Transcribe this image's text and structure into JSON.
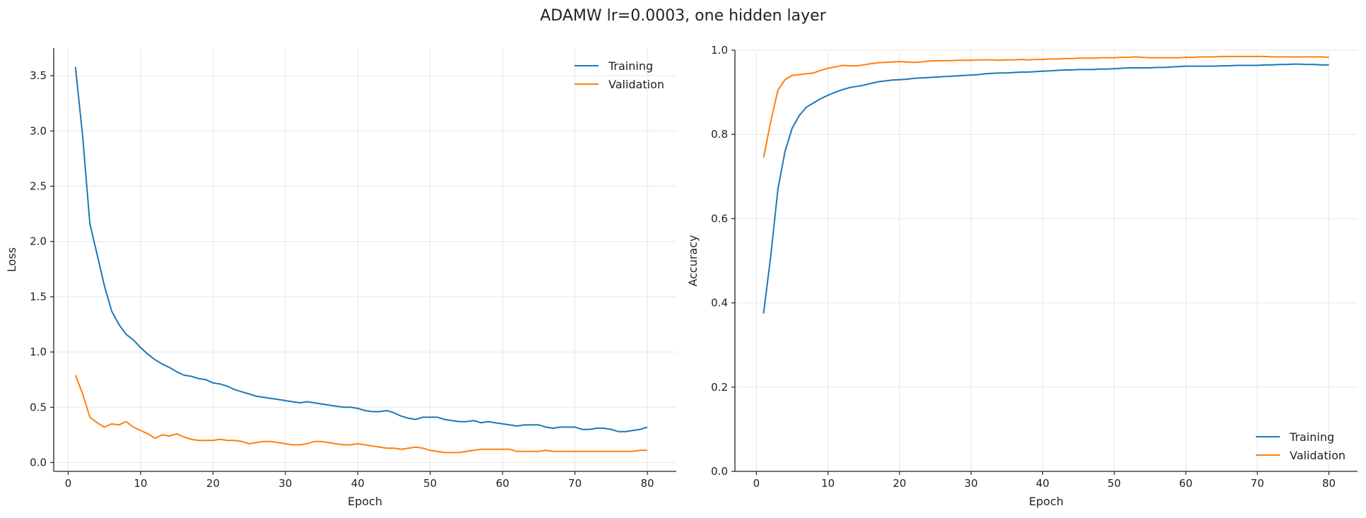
{
  "figure": {
    "title": "ADAMW lr=0.0003, one hidden layer"
  },
  "chart_data": [
    {
      "type": "line",
      "title": "",
      "xlabel": "Epoch",
      "ylabel": "Loss",
      "xlim": [
        -2,
        84
      ],
      "ylim": [
        -0.08,
        3.75
      ],
      "xticks": [
        0,
        10,
        20,
        30,
        40,
        50,
        60,
        70,
        80
      ],
      "yticks": [
        0.0,
        0.5,
        1.0,
        1.5,
        2.0,
        2.5,
        3.0,
        3.5
      ],
      "ytick_labels": [
        "0.0",
        "0.5",
        "1.0",
        "1.5",
        "2.0",
        "2.5",
        "3.0",
        "3.5"
      ],
      "grid": true,
      "legend": "top-right",
      "x": [
        1,
        2,
        3,
        4,
        5,
        6,
        7,
        8,
        9,
        10,
        11,
        12,
        13,
        14,
        15,
        16,
        17,
        18,
        19,
        20,
        21,
        22,
        23,
        24,
        25,
        26,
        27,
        28,
        29,
        30,
        31,
        32,
        33,
        34,
        35,
        36,
        37,
        38,
        39,
        40,
        41,
        42,
        43,
        44,
        45,
        46,
        47,
        48,
        49,
        50,
        51,
        52,
        53,
        54,
        55,
        56,
        57,
        58,
        59,
        60,
        61,
        62,
        63,
        64,
        65,
        66,
        67,
        68,
        69,
        70,
        71,
        72,
        73,
        74,
        75,
        76,
        77,
        78,
        79,
        80
      ],
      "series": [
        {
          "name": "Training",
          "color": "#1f77b4",
          "values": [
            3.58,
            2.95,
            2.16,
            1.88,
            1.6,
            1.37,
            1.25,
            1.16,
            1.11,
            1.04,
            0.98,
            0.93,
            0.89,
            0.86,
            0.82,
            0.79,
            0.78,
            0.76,
            0.75,
            0.72,
            0.71,
            0.69,
            0.66,
            0.64,
            0.62,
            0.6,
            0.59,
            0.58,
            0.57,
            0.56,
            0.55,
            0.54,
            0.55,
            0.54,
            0.53,
            0.52,
            0.51,
            0.5,
            0.5,
            0.49,
            0.47,
            0.46,
            0.46,
            0.47,
            0.45,
            0.42,
            0.4,
            0.39,
            0.41,
            0.41,
            0.41,
            0.39,
            0.38,
            0.37,
            0.37,
            0.38,
            0.36,
            0.37,
            0.36,
            0.35,
            0.34,
            0.33,
            0.34,
            0.34,
            0.34,
            0.32,
            0.31,
            0.32,
            0.32,
            0.32,
            0.3,
            0.3,
            0.31,
            0.31,
            0.3,
            0.28,
            0.28,
            0.29,
            0.3,
            0.32
          ]
        },
        {
          "name": "Validation",
          "color": "#ff7f0e",
          "values": [
            0.79,
            0.62,
            0.41,
            0.36,
            0.32,
            0.35,
            0.34,
            0.37,
            0.32,
            0.29,
            0.26,
            0.22,
            0.25,
            0.24,
            0.26,
            0.23,
            0.21,
            0.2,
            0.2,
            0.2,
            0.21,
            0.2,
            0.2,
            0.19,
            0.17,
            0.18,
            0.19,
            0.19,
            0.18,
            0.17,
            0.16,
            0.16,
            0.17,
            0.19,
            0.19,
            0.18,
            0.17,
            0.16,
            0.16,
            0.17,
            0.16,
            0.15,
            0.14,
            0.13,
            0.13,
            0.12,
            0.13,
            0.14,
            0.13,
            0.11,
            0.1,
            0.09,
            0.09,
            0.09,
            0.1,
            0.11,
            0.12,
            0.12,
            0.12,
            0.12,
            0.12,
            0.1,
            0.1,
            0.1,
            0.1,
            0.11,
            0.1,
            0.1,
            0.1,
            0.1,
            0.1,
            0.1,
            0.1,
            0.1,
            0.1,
            0.1,
            0.1,
            0.1,
            0.11,
            0.11
          ]
        }
      ]
    },
    {
      "type": "line",
      "title": "",
      "xlabel": "Epoch",
      "ylabel": "Accuracy",
      "xlim": [
        -3,
        84
      ],
      "ylim": [
        0.0,
        1.0
      ],
      "xticks": [
        0,
        10,
        20,
        30,
        40,
        50,
        60,
        70,
        80
      ],
      "yticks": [
        0.0,
        0.2,
        0.4,
        0.6,
        0.8,
        1.0
      ],
      "ytick_labels": [
        "0.0",
        "0.2",
        "0.4",
        "0.6",
        "0.8",
        "1.0"
      ],
      "grid": true,
      "legend": "bottom-right",
      "x": [
        1,
        2,
        3,
        4,
        5,
        6,
        7,
        8,
        9,
        10,
        11,
        12,
        13,
        14,
        15,
        16,
        17,
        18,
        19,
        20,
        21,
        22,
        23,
        24,
        25,
        26,
        27,
        28,
        29,
        30,
        31,
        32,
        33,
        34,
        35,
        36,
        37,
        38,
        39,
        40,
        41,
        42,
        43,
        44,
        45,
        46,
        47,
        48,
        49,
        50,
        51,
        52,
        53,
        54,
        55,
        56,
        57,
        58,
        59,
        60,
        61,
        62,
        63,
        64,
        65,
        66,
        67,
        68,
        69,
        70,
        71,
        72,
        73,
        74,
        75,
        76,
        77,
        78,
        79,
        80
      ],
      "series": [
        {
          "name": "Training",
          "color": "#1f77b4",
          "values": [
            0.375,
            0.51,
            0.67,
            0.76,
            0.815,
            0.845,
            0.865,
            0.875,
            0.885,
            0.893,
            0.9,
            0.906,
            0.911,
            0.914,
            0.917,
            0.921,
            0.925,
            0.927,
            0.929,
            0.93,
            0.931,
            0.933,
            0.934,
            0.935,
            0.936,
            0.937,
            0.938,
            0.939,
            0.94,
            0.941,
            0.942,
            0.944,
            0.945,
            0.946,
            0.946,
            0.947,
            0.948,
            0.948,
            0.949,
            0.95,
            0.951,
            0.952,
            0.953,
            0.953,
            0.954,
            0.954,
            0.954,
            0.955,
            0.955,
            0.956,
            0.957,
            0.958,
            0.958,
            0.958,
            0.958,
            0.959,
            0.959,
            0.96,
            0.961,
            0.962,
            0.962,
            0.962,
            0.962,
            0.962,
            0.963,
            0.963,
            0.964,
            0.964,
            0.964,
            0.964,
            0.965,
            0.965,
            0.966,
            0.966,
            0.967,
            0.967,
            0.966,
            0.966,
            0.965,
            0.965
          ]
        },
        {
          "name": "Validation",
          "color": "#ff7f0e",
          "values": [
            0.745,
            0.83,
            0.905,
            0.93,
            0.94,
            0.942,
            0.944,
            0.946,
            0.952,
            0.957,
            0.96,
            0.964,
            0.963,
            0.963,
            0.965,
            0.968,
            0.97,
            0.971,
            0.972,
            0.973,
            0.972,
            0.971,
            0.972,
            0.974,
            0.975,
            0.975,
            0.975,
            0.976,
            0.976,
            0.976,
            0.977,
            0.977,
            0.977,
            0.976,
            0.977,
            0.977,
            0.978,
            0.977,
            0.978,
            0.978,
            0.979,
            0.979,
            0.98,
            0.98,
            0.981,
            0.981,
            0.981,
            0.982,
            0.982,
            0.982,
            0.983,
            0.983,
            0.984,
            0.983,
            0.982,
            0.982,
            0.982,
            0.982,
            0.982,
            0.983,
            0.983,
            0.984,
            0.984,
            0.984,
            0.985,
            0.985,
            0.985,
            0.985,
            0.985,
            0.985,
            0.985,
            0.984,
            0.984,
            0.984,
            0.984,
            0.984,
            0.984,
            0.984,
            0.984,
            0.983
          ]
        }
      ]
    }
  ]
}
